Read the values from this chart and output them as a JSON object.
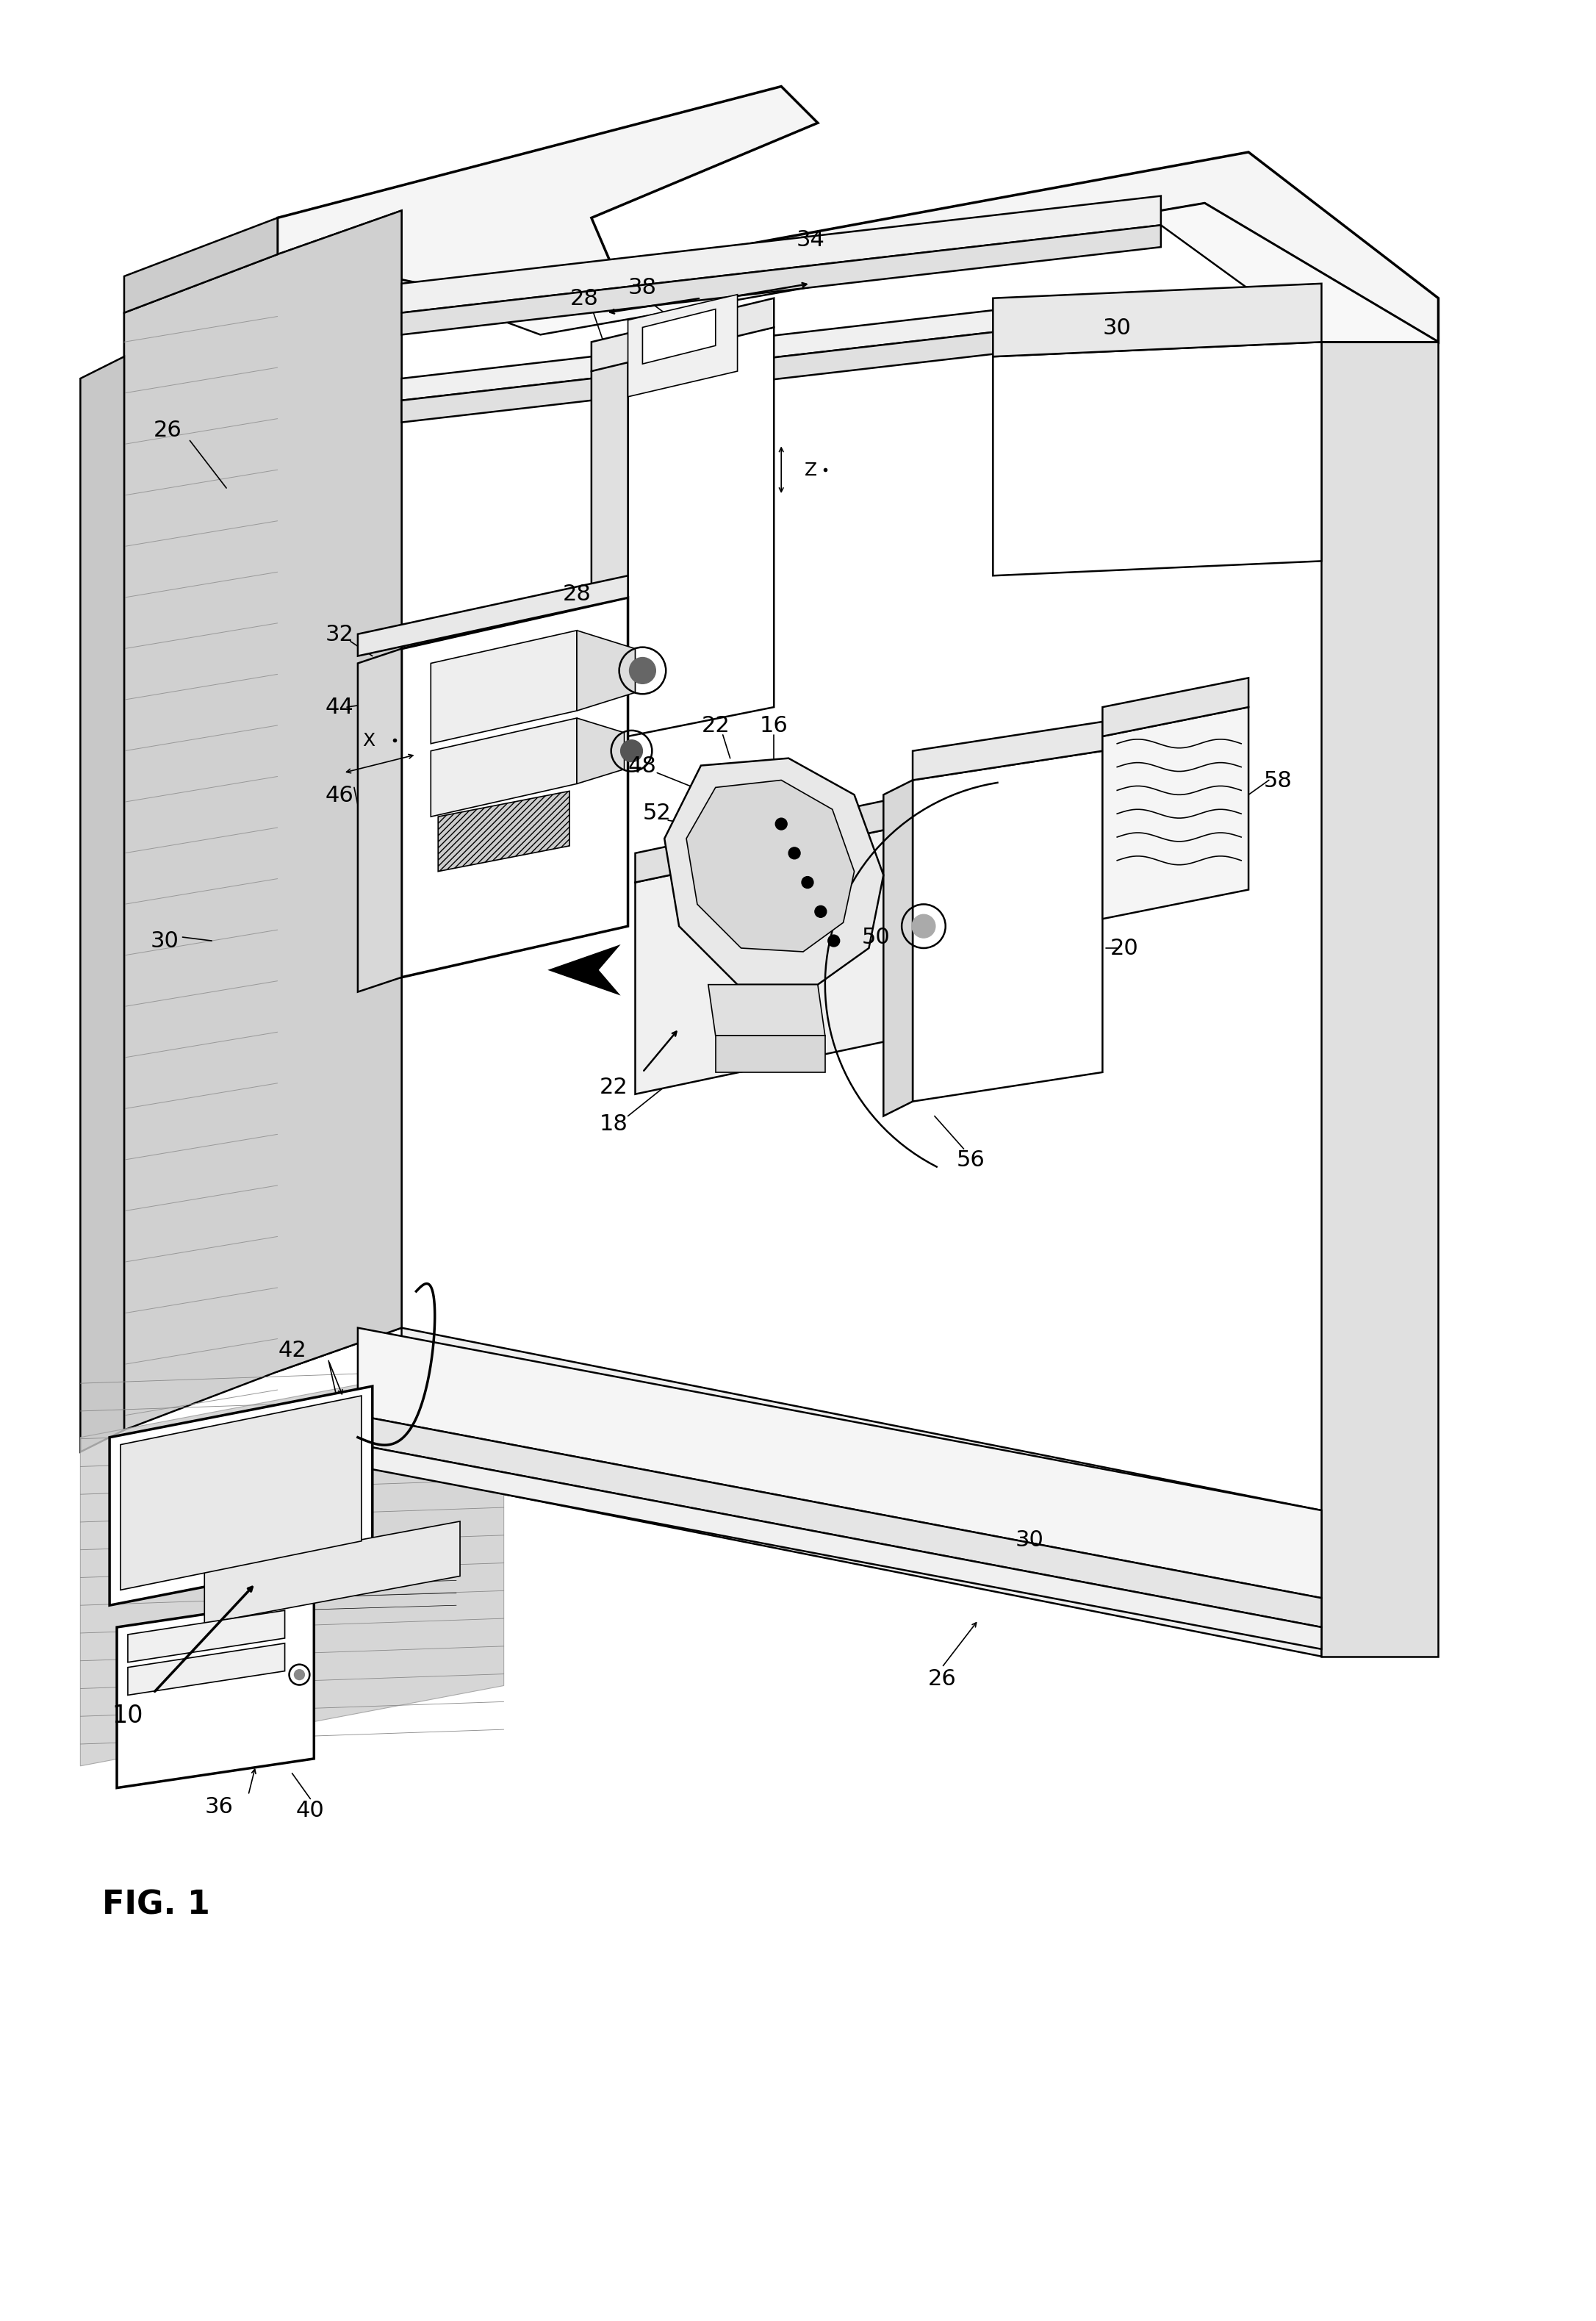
{
  "background_color": "#ffffff",
  "lw_thin": 1.2,
  "lw_med": 1.8,
  "lw_thick": 2.5,
  "fig_label": "FIG. 1",
  "ref_fontsize": 22,
  "fig_fontsize": 32
}
